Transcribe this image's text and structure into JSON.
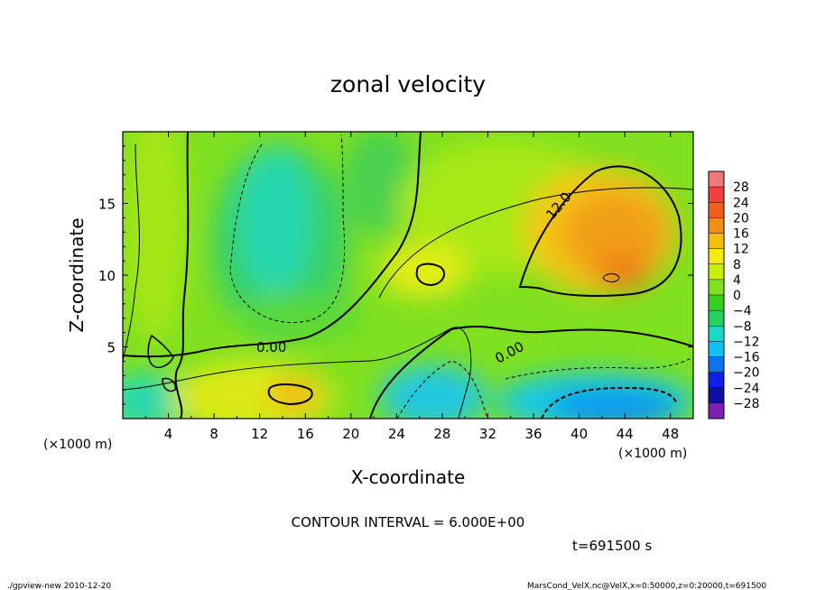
{
  "chart_data": {
    "type": "heatmap",
    "title": "zonal velocity",
    "xlabel": "X-coordinate",
    "ylabel": "Z-coordinate",
    "x_unit": "(×1000 m)",
    "z_unit": "(×1000 m)",
    "xlim": [
      0,
      50
    ],
    "zlim": [
      0,
      20
    ],
    "x_ticks": [
      "4",
      "8",
      "12",
      "16",
      "20",
      "24",
      "28",
      "32",
      "36",
      "40",
      "44",
      "48"
    ],
    "z_ticks": [
      "5",
      "10",
      "15"
    ],
    "colorbar_labels": [
      "28",
      "24",
      "20",
      "16",
      "12",
      "8",
      "4",
      "0",
      "−4",
      "−8",
      "−12",
      "−16",
      "−20",
      "−24",
      "−28"
    ],
    "colorbar_colors": [
      "#f07878",
      "#f04040",
      "#f06020",
      "#f08c18",
      "#f4c010",
      "#f4ec10",
      "#c8ee10",
      "#80e020",
      "#38d020",
      "#28d060",
      "#18d8c8",
      "#10c0f0",
      "#1070f0",
      "#1020e0",
      "#1010a0",
      "#8020b0"
    ],
    "contour_labels": [
      "12.0",
      "0.00",
      "0.00"
    ],
    "contour_interval": "CONTOUR INTERVAL = 6.000E+00",
    "time": "t=691500 s"
  },
  "footer": {
    "left": "./gpview-new  2010-12-20",
    "right": "MarsCond_VelX.nc@VelX,x=0:50000,z=0:20000,t=691500"
  }
}
